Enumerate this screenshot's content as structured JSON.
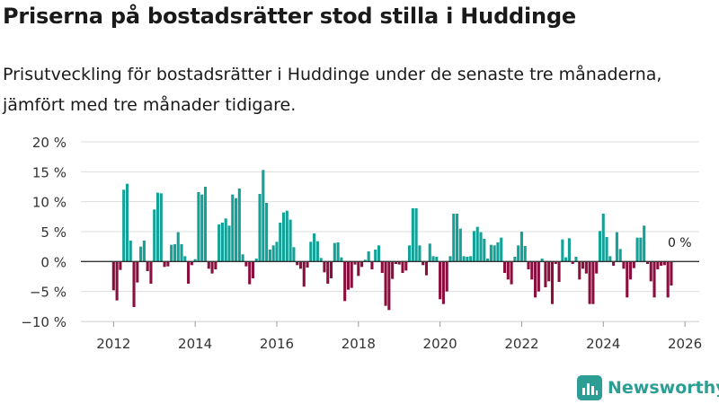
{
  "header": {
    "title": "Priserna på bostadsrätter stod stilla i Huddinge",
    "subtitle": "Prisutveckling för bostadsrätter i Huddinge under de senaste tre månaderna, jämfört med tre månader tidigare."
  },
  "brand": {
    "name": "Newsworthy",
    "icon": "bar-chart-logo-icon",
    "color": "#2c9e94"
  },
  "colors": {
    "positive": "#13a198",
    "negative": "#8a0f3e",
    "grid": "#dddddd",
    "zero": "#333333"
  },
  "chart_data": {
    "type": "bar",
    "title": "Priserna på bostadsrätter stod stilla i Huddinge",
    "xlabel": "",
    "ylabel": "",
    "ylim": [
      -10,
      20
    ],
    "xlim": [
      2011.2,
      2026.35
    ],
    "y_ticks": [
      20,
      15,
      10,
      5,
      0,
      -5,
      -10
    ],
    "y_tick_labels": [
      "20 %",
      "15 %",
      "10 %",
      "5 %",
      "0 %",
      "−5 %",
      "−10 %"
    ],
    "x_ticks": [
      2012,
      2014,
      2016,
      2018,
      2020,
      2022,
      2024,
      2026
    ],
    "x_tick_labels": [
      "2012",
      "2014",
      "2016",
      "2018",
      "2020",
      "2022",
      "2024",
      "2026"
    ],
    "grid": true,
    "legend": "none",
    "x_start": 2012.0,
    "x_step": 0.08333,
    "unit": "%",
    "annotation": "0 %",
    "values": [
      -4.8,
      -6.5,
      -1.4,
      12.0,
      13.0,
      3.5,
      -7.6,
      -3.5,
      2.5,
      3.5,
      -1.6,
      -3.7,
      8.7,
      11.5,
      11.4,
      -0.9,
      -0.8,
      2.8,
      2.9,
      4.9,
      2.9,
      0.9,
      -3.7,
      -0.6,
      0.4,
      11.6,
      11.2,
      12.5,
      -1.2,
      -2.0,
      -1.3,
      6.2,
      6.5,
      7.2,
      6.0,
      11.2,
      10.6,
      12.2,
      1.2,
      -0.8,
      -3.8,
      -2.8,
      0.5,
      11.3,
      15.3,
      9.8,
      2.0,
      2.7,
      3.3,
      6.5,
      8.2,
      8.5,
      7.0,
      2.4,
      -0.6,
      -1.2,
      -4.2,
      -1.0,
      3.3,
      4.7,
      3.4,
      0.6,
      -1.8,
      -3.7,
      -2.8,
      3.1,
      3.2,
      0.7,
      -6.6,
      -4.7,
      -4.4,
      -0.5,
      -2.4,
      -0.9,
      0.3,
      1.7,
      -1.3,
      2.0,
      2.7,
      -1.9,
      -7.4,
      -8.1,
      -2.9,
      -0.4,
      -0.5,
      -1.9,
      -1.5,
      2.7,
      8.9,
      8.9,
      2.7,
      -0.6,
      -2.3,
      3.0,
      0.9,
      0.8,
      -6.3,
      -7.1,
      -5.0,
      0.9,
      8.0,
      8.0,
      5.5,
      0.9,
      0.8,
      0.9,
      5.1,
      5.8,
      4.9,
      3.8,
      0.5,
      2.8,
      2.7,
      3.2,
      4.0,
      -1.9,
      -3.0,
      -3.8,
      0.8,
      2.7,
      5.0,
      2.6,
      -1.3,
      -3.0,
      -6.0,
      -5.0,
      0.5,
      -4.3,
      -3.3,
      -7.1,
      -0.4,
      -3.4,
      3.7,
      0.7,
      3.9,
      -0.4,
      0.8,
      -3.0,
      -1.2,
      -2.0,
      -7.1,
      -7.1,
      -2.0,
      5.1,
      8.0,
      4.1,
      0.9,
      -0.7,
      4.9,
      2.1,
      -1.2,
      -6.0,
      -3.0,
      -1.1,
      4.0,
      4.0,
      6.0,
      -0.4,
      -3.3,
      -6.0,
      -1.3,
      -0.7,
      -0.6,
      -6.0,
      -4.0
    ]
  }
}
